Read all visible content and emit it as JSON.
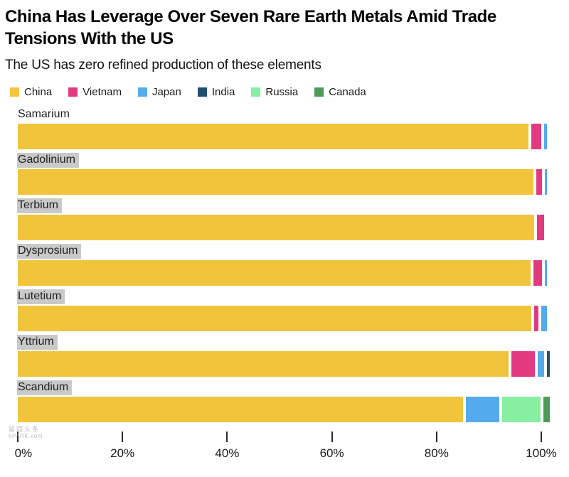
{
  "header": {
    "title_line1": "China Has Leverage Over Seven Rare Earth Metals Amid Trade",
    "title_line2": "Tensions With the US",
    "subtitle": "The US has zero refined production of these elements"
  },
  "watermark": {
    "line1": "留园头条",
    "line2": "6PARK-com"
  },
  "chart_data": {
    "type": "bar",
    "orientation": "horizontal",
    "stacked": true,
    "unit": "percent",
    "title": "China Has Leverage Over Seven Rare Earth Metals Amid Trade Tensions With the US",
    "subtitle": "The US has zero refined production of these elements",
    "legend_position": "top",
    "grid": false,
    "xlim": [
      0,
      100
    ],
    "x_ticks": [
      "0%",
      "20%",
      "40%",
      "60%",
      "80%",
      "100%"
    ],
    "categories": [
      "Samarium",
      "Gadolinium",
      "Terbium",
      "Dysprosium",
      "Lutetium",
      "Yttrium",
      "Scandium"
    ],
    "label_highlighted": [
      false,
      true,
      true,
      true,
      true,
      true,
      true
    ],
    "legend": [
      "China",
      "Vietnam",
      "Japan",
      "India",
      "Russia",
      "Canada"
    ],
    "series_colors": {
      "China": "#F1C43C",
      "Vietnam": "#E23A81",
      "Japan": "#55AAEB",
      "India": "#20506E",
      "Russia": "#86EFA1",
      "Canada": "#4D9A57"
    },
    "series": [
      {
        "name": "China",
        "values": [
          97.6,
          98.5,
          98.6,
          98.0,
          98.1,
          93.8,
          85.0
        ]
      },
      {
        "name": "Vietnam",
        "values": [
          1.9,
          1.1,
          1.4,
          1.6,
          0.8,
          4.5,
          0
        ]
      },
      {
        "name": "Japan",
        "values": [
          0.5,
          0.4,
          0,
          0.4,
          1.1,
          1.2,
          6.5
        ]
      },
      {
        "name": "India",
        "values": [
          0,
          0,
          0,
          0,
          0,
          0.5,
          0
        ]
      },
      {
        "name": "Russia",
        "values": [
          0,
          0,
          0,
          0,
          0,
          0,
          7.3
        ]
      },
      {
        "name": "Canada",
        "values": [
          0,
          0,
          0,
          0,
          0,
          0,
          1.2
        ]
      }
    ]
  }
}
